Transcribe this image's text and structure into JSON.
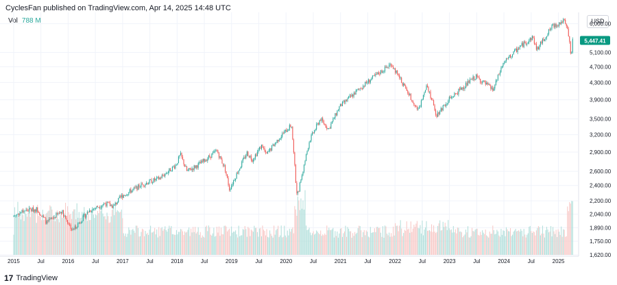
{
  "header": {
    "publisher": "CyclesFan published on TradingView.com, Apr 14, 2025 14:48 UTC"
  },
  "volume": {
    "label": "Vol",
    "value": "788 M"
  },
  "currency": "USD",
  "brand": {
    "logo": "17",
    "name": "TradingView"
  },
  "colors": {
    "up": "#26a69a",
    "down": "#ef5350",
    "price_tag": "#089981",
    "vol_up": "#b2dfdb",
    "vol_down": "#f8c8c6"
  },
  "chart_data": {
    "type": "candlestick",
    "scale": "log",
    "ylim": [
      1620,
      6300
    ],
    "y_ticks": [
      "6,000.00",
      "5,100.00",
      "4,700.00",
      "4,300.00",
      "3,900.00",
      "3,500.00",
      "3,200.00",
      "2,900.00",
      "2,600.00",
      "2,400.00",
      "2,200.00",
      "2,040.00",
      "1,890.00",
      "1,750.00",
      "1,620.00"
    ],
    "last_price": "5,447.41",
    "x_ticks": [
      "2015",
      "Jul",
      "2016",
      "Jul",
      "2017",
      "Jul",
      "2018",
      "Jul",
      "2019",
      "Jul",
      "2020",
      "Jul",
      "2021",
      "Jul",
      "2022",
      "Jul",
      "2023",
      "Jul",
      "2024",
      "Jul",
      "2025"
    ],
    "price_path": [
      {
        "t": 2015.0,
        "v": 2010
      },
      {
        "t": 2015.2,
        "v": 2080
      },
      {
        "t": 2015.45,
        "v": 2100
      },
      {
        "t": 2015.63,
        "v": 1940
      },
      {
        "t": 2015.9,
        "v": 2080
      },
      {
        "t": 2016.1,
        "v": 1860
      },
      {
        "t": 2016.4,
        "v": 2080
      },
      {
        "t": 2016.7,
        "v": 2170
      },
      {
        "t": 2016.85,
        "v": 2130
      },
      {
        "t": 2017.0,
        "v": 2260
      },
      {
        "t": 2017.4,
        "v": 2420
      },
      {
        "t": 2017.7,
        "v": 2500
      },
      {
        "t": 2018.0,
        "v": 2700
      },
      {
        "t": 2018.08,
        "v": 2860
      },
      {
        "t": 2018.2,
        "v": 2600
      },
      {
        "t": 2018.45,
        "v": 2720
      },
      {
        "t": 2018.75,
        "v": 2920
      },
      {
        "t": 2018.9,
        "v": 2640
      },
      {
        "t": 2018.98,
        "v": 2350
      },
      {
        "t": 2019.3,
        "v": 2890
      },
      {
        "t": 2019.4,
        "v": 2780
      },
      {
        "t": 2019.58,
        "v": 3020
      },
      {
        "t": 2019.65,
        "v": 2850
      },
      {
        "t": 2019.9,
        "v": 3150
      },
      {
        "t": 2020.12,
        "v": 3380
      },
      {
        "t": 2020.22,
        "v": 2240
      },
      {
        "t": 2020.45,
        "v": 3100
      },
      {
        "t": 2020.65,
        "v": 3500
      },
      {
        "t": 2020.8,
        "v": 3300
      },
      {
        "t": 2021.0,
        "v": 3750
      },
      {
        "t": 2021.5,
        "v": 4300
      },
      {
        "t": 2021.95,
        "v": 4780
      },
      {
        "t": 2022.15,
        "v": 4300
      },
      {
        "t": 2022.45,
        "v": 3660
      },
      {
        "t": 2022.6,
        "v": 4280
      },
      {
        "t": 2022.78,
        "v": 3580
      },
      {
        "t": 2023.0,
        "v": 3900
      },
      {
        "t": 2023.5,
        "v": 4450
      },
      {
        "t": 2023.82,
        "v": 4120
      },
      {
        "t": 2024.0,
        "v": 4780
      },
      {
        "t": 2024.3,
        "v": 5250
      },
      {
        "t": 2024.55,
        "v": 5560
      },
      {
        "t": 2024.62,
        "v": 5180
      },
      {
        "t": 2024.9,
        "v": 5900
      },
      {
        "t": 2025.12,
        "v": 6100
      },
      {
        "t": 2025.2,
        "v": 5700
      },
      {
        "t": 2025.25,
        "v": 4980
      },
      {
        "t": 2025.28,
        "v": 5447
      }
    ]
  }
}
